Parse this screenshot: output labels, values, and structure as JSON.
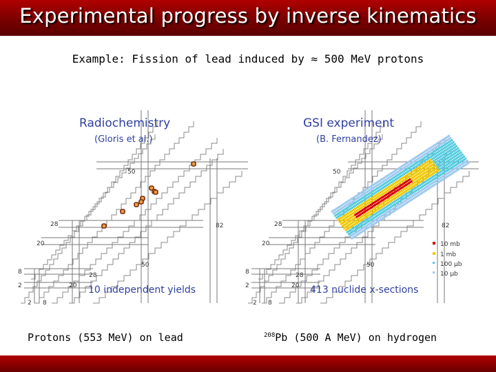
{
  "slide": {
    "title": "Experimental progress by inverse kinematics",
    "subtitle": "Example: Fission of lead induced by ≈ 500 MeV protons"
  },
  "left_panel": {
    "heading": "Radiochemistry",
    "author": "(Gloris et al.)",
    "footnote": "10 independent yields",
    "magic_labels": {
      "n50": "50",
      "n82": "82",
      "n28": "28",
      "n20": "20",
      "n8": "8",
      "n2": "2",
      "z50": "50",
      "z28": "28",
      "z20": "20",
      "z2": "2",
      "z8": "8"
    },
    "caption": "Protons (553 MeV) on lead",
    "colors": {
      "heading": "#2f3f9f",
      "points": "#8b2a10"
    }
  },
  "right_panel": {
    "heading": "GSI experiment",
    "author": "(B. Fernandez)",
    "footnote": "413 nuclide x-sections",
    "magic_labels": {
      "n50": "50",
      "n82": "82",
      "n28": "28",
      "n20": "20",
      "n8": "8",
      "n2": "2",
      "z50": "50",
      "z28": "28",
      "z20": "20",
      "z2": "2",
      "z8": "8"
    },
    "legend": [
      {
        "label": "10 mb",
        "color": "#dd0000"
      },
      {
        "label": "1 mb",
        "color": "#f0c800"
      },
      {
        "label": "100 µb",
        "color": "#55cce0"
      },
      {
        "label": "10 µb",
        "color": "#9ec9ee"
      }
    ],
    "caption_sup": "208",
    "caption": "Pb (500 A MeV) on hydrogen"
  }
}
